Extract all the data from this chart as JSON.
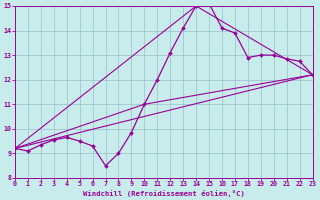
{
  "xlabel": "Windchill (Refroidissement éolien,°C)",
  "background_color": "#c8ecec",
  "grid_color": "#a0c8d0",
  "line_color": "#990099",
  "xlim": [
    0,
    23
  ],
  "ylim": [
    8,
    15
  ],
  "xticks": [
    0,
    1,
    2,
    3,
    4,
    5,
    6,
    7,
    8,
    9,
    10,
    11,
    12,
    13,
    14,
    15,
    16,
    17,
    18,
    19,
    20,
    21,
    22,
    23
  ],
  "yticks": [
    8,
    9,
    10,
    11,
    12,
    13,
    14,
    15
  ],
  "line1_x": [
    0,
    1,
    2,
    3,
    4,
    5,
    6,
    7,
    8,
    9,
    10,
    11,
    12,
    13,
    14,
    15,
    16,
    17,
    18,
    19,
    20,
    21,
    22,
    23
  ],
  "line1_y": [
    9.2,
    9.1,
    9.35,
    9.55,
    9.65,
    9.5,
    9.3,
    8.5,
    9.0,
    9.85,
    11.0,
    12.0,
    13.1,
    14.1,
    15.0,
    15.1,
    14.1,
    13.9,
    12.9,
    13.0,
    13.0,
    12.85,
    12.75,
    12.2
  ],
  "line2_x": [
    0,
    23
  ],
  "line2_y": [
    9.2,
    12.2
  ],
  "line3_x": [
    0,
    14,
    23
  ],
  "line3_y": [
    9.2,
    15.0,
    12.2
  ],
  "line4_x": [
    0,
    10,
    23
  ],
  "line4_y": [
    9.2,
    11.0,
    12.2
  ]
}
